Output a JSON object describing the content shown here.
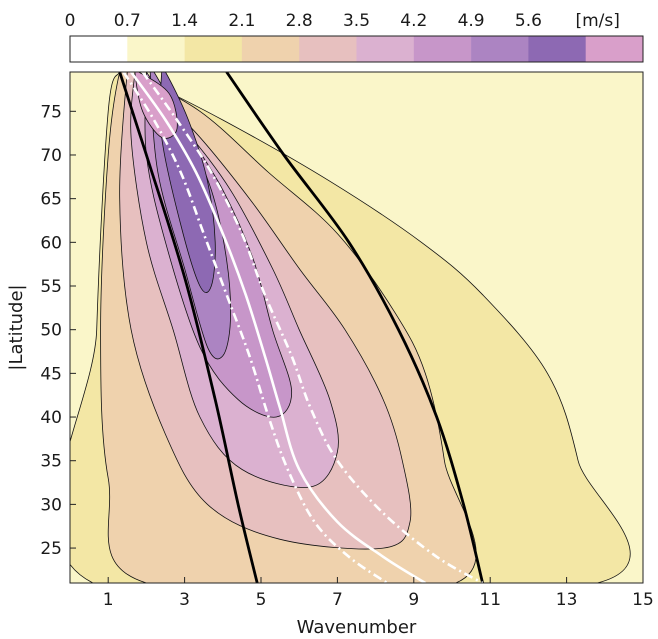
{
  "chart_data": {
    "type": "contour",
    "xlabel": "Wavenumber",
    "ylabel": "|Latitude|",
    "xlim": [
      0,
      15
    ],
    "ylim": [
      21,
      79.5
    ],
    "x_ticks": [
      1,
      3,
      5,
      7,
      9,
      11,
      13,
      15
    ],
    "y_ticks": [
      25,
      30,
      35,
      40,
      45,
      50,
      55,
      60,
      65,
      70,
      75
    ],
    "colorbar": {
      "unit": "[m/s]",
      "levels": [
        0,
        0.7,
        1.4,
        2.1,
        2.8,
        3.5,
        4.2,
        4.9,
        5.6
      ],
      "tick_labels": [
        "0",
        "0.7",
        "1.4",
        "2.1",
        "2.8",
        "3.5",
        "4.2",
        "4.9",
        "5.6"
      ],
      "colors": [
        "#ffffff",
        "#faf6c9",
        "#f3e7a5",
        "#efd2ad",
        "#e7c0bf",
        "#dbb1d0",
        "#c796c9",
        "#ac84c2",
        "#8d69b3",
        "#d99fca"
      ],
      "placement": "top"
    },
    "background_color": "#faf6c9",
    "filled_regions": [
      {
        "level": 1.4,
        "color": "#f3e7a5",
        "boundary": [
          [
            1.5,
            79.5
          ],
          [
            4.0,
            74
          ],
          [
            6.8,
            67
          ],
          [
            9.2,
            60
          ],
          [
            10.8,
            54
          ],
          [
            12.5,
            45
          ],
          [
            13.3,
            35
          ],
          [
            13.8,
            21
          ],
          [
            0.6,
            21
          ],
          [
            0.7,
            50
          ],
          [
            1.0,
            75
          ],
          [
            1.3,
            79.5
          ]
        ]
      },
      {
        "level": 2.1,
        "color": "#efd2ad",
        "boundary": [
          [
            1.5,
            79.5
          ],
          [
            3.4,
            75
          ],
          [
            5.2,
            68
          ],
          [
            7.0,
            61
          ],
          [
            8.5,
            52
          ],
          [
            9.3,
            45
          ],
          [
            9.8,
            35
          ],
          [
            10.1,
            21
          ],
          [
            2.0,
            21
          ],
          [
            1.0,
            33
          ],
          [
            0.8,
            50
          ],
          [
            1.0,
            70
          ],
          [
            1.3,
            79.5
          ]
        ]
      },
      {
        "level": 2.8,
        "color": "#e7c0bf",
        "boundary": [
          [
            1.6,
            79.5
          ],
          [
            3.2,
            73
          ],
          [
            4.7,
            65
          ],
          [
            6.0,
            57
          ],
          [
            7.2,
            50
          ],
          [
            8.2,
            42
          ],
          [
            8.7,
            35
          ],
          [
            8.9,
            28
          ],
          [
            8.2,
            25
          ],
          [
            5.5,
            26
          ],
          [
            3.6,
            30
          ],
          [
            2.5,
            38
          ],
          [
            1.6,
            50
          ],
          [
            1.3,
            65
          ],
          [
            1.5,
            79.5
          ]
        ]
      },
      {
        "level": 3.5,
        "color": "#dbb1d0",
        "boundary": [
          [
            1.7,
            79.5
          ],
          [
            3.0,
            73
          ],
          [
            4.2,
            66
          ],
          [
            5.3,
            57
          ],
          [
            6.0,
            50
          ],
          [
            6.8,
            42
          ],
          [
            7.0,
            36
          ],
          [
            6.3,
            32
          ],
          [
            4.5,
            34
          ],
          [
            3.4,
            40
          ],
          [
            2.7,
            50
          ],
          [
            2.0,
            60
          ],
          [
            1.6,
            72
          ],
          [
            1.7,
            79.5
          ]
        ]
      },
      {
        "level": 4.2,
        "color": "#c796c9",
        "boundary": [
          [
            2.0,
            79.5
          ],
          [
            3.0,
            73
          ],
          [
            4.0,
            66
          ],
          [
            4.8,
            58
          ],
          [
            5.3,
            50
          ],
          [
            5.8,
            43
          ],
          [
            5.4,
            40
          ],
          [
            4.4,
            42
          ],
          [
            3.4,
            48
          ],
          [
            2.5,
            60
          ],
          [
            2.0,
            70
          ],
          [
            2.0,
            79.5
          ]
        ]
      },
      {
        "level": 4.9,
        "color": "#ac84c2",
        "boundary": [
          [
            2.2,
            79.5
          ],
          [
            3.0,
            73
          ],
          [
            3.7,
            66
          ],
          [
            4.1,
            58
          ],
          [
            4.2,
            51
          ],
          [
            4.0,
            47
          ],
          [
            3.6,
            48
          ],
          [
            3.0,
            57
          ],
          [
            2.3,
            68
          ],
          [
            2.1,
            79.5
          ]
        ]
      },
      {
        "level": 5.6,
        "color": "#8d69b3",
        "boundary": [
          [
            2.5,
            79.5
          ],
          [
            3.1,
            74
          ],
          [
            3.6,
            67
          ],
          [
            3.8,
            60
          ],
          [
            3.7,
            55
          ],
          [
            3.4,
            55
          ],
          [
            2.9,
            62
          ],
          [
            2.4,
            72
          ],
          [
            2.4,
            79.5
          ]
        ]
      },
      {
        "level": 6.3,
        "color": "#d99fca",
        "boundary": [
          [
            1.8,
            79.5
          ],
          [
            2.6,
            77
          ],
          [
            2.8,
            73
          ],
          [
            2.4,
            72
          ],
          [
            1.9,
            75
          ],
          [
            1.7,
            79.5
          ]
        ]
      }
    ],
    "black_curves": [
      {
        "style": "solid",
        "color": "#000000",
        "points": [
          [
            1.3,
            79.5
          ],
          [
            2.0,
            70
          ],
          [
            3.0,
            56
          ],
          [
            3.8,
            42
          ],
          [
            4.4,
            30
          ],
          [
            4.9,
            21
          ]
        ]
      },
      {
        "style": "solid",
        "color": "#000000",
        "points": [
          [
            4.1,
            79.5
          ],
          [
            5.6,
            70
          ],
          [
            7.3,
            60
          ],
          [
            8.6,
            50
          ],
          [
            9.6,
            40
          ],
          [
            10.3,
            30
          ],
          [
            10.8,
            21
          ]
        ]
      }
    ],
    "white_curves": [
      {
        "style": "solid",
        "color": "#ffffff",
        "points": [
          [
            1.6,
            79.5
          ],
          [
            2.5,
            74
          ],
          [
            3.3,
            68
          ],
          [
            4.0,
            61
          ],
          [
            4.6,
            54
          ],
          [
            5.1,
            47
          ],
          [
            5.5,
            41
          ],
          [
            6.0,
            34
          ],
          [
            7.0,
            28
          ],
          [
            8.2,
            24
          ],
          [
            9.3,
            21
          ]
        ]
      },
      {
        "style": "dashdot",
        "color": "#ffffff",
        "points": [
          [
            1.4,
            79.5
          ],
          [
            2.2,
            74
          ],
          [
            2.9,
            68
          ],
          [
            3.5,
            61
          ],
          [
            4.1,
            54
          ],
          [
            4.7,
            47
          ],
          [
            5.2,
            40
          ],
          [
            5.7,
            34
          ],
          [
            6.4,
            28
          ],
          [
            7.3,
            24
          ],
          [
            8.3,
            21
          ]
        ]
      },
      {
        "style": "dashdot",
        "color": "#ffffff",
        "points": [
          [
            1.9,
            79.5
          ],
          [
            2.8,
            74
          ],
          [
            3.7,
            68
          ],
          [
            4.5,
            61
          ],
          [
            5.1,
            54
          ],
          [
            5.8,
            47
          ],
          [
            6.3,
            41
          ],
          [
            7.0,
            35
          ],
          [
            8.2,
            29
          ],
          [
            9.6,
            24
          ],
          [
            10.8,
            21
          ]
        ]
      }
    ],
    "grid": false,
    "legend": "none"
  }
}
